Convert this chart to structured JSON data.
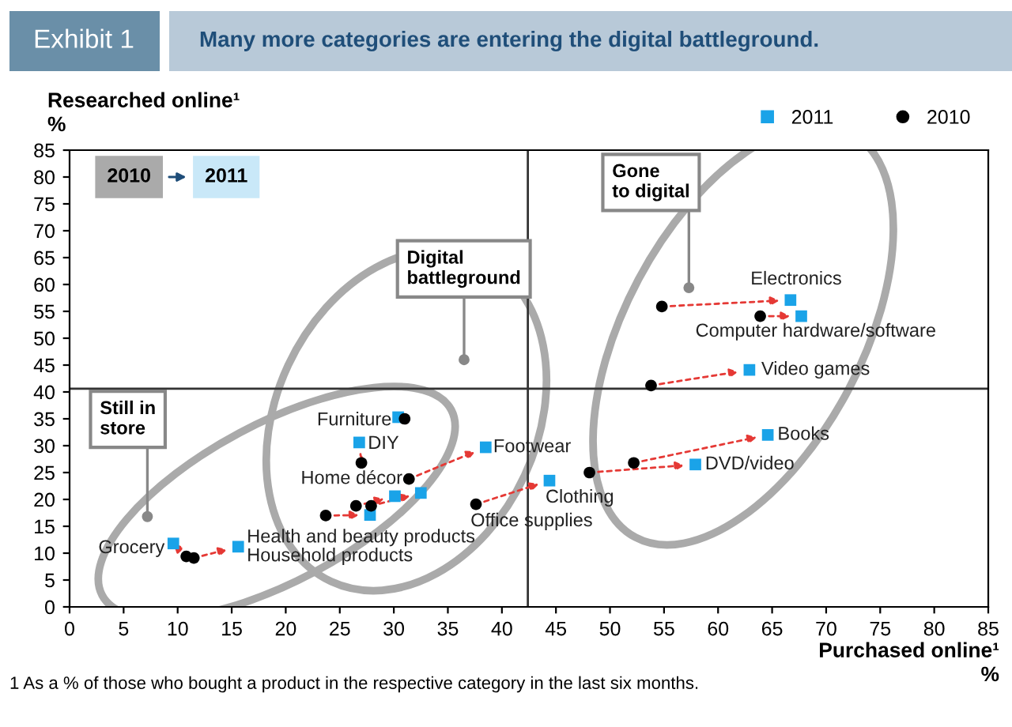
{
  "chart_data": {
    "type": "scatter",
    "title": "Exhibit 1",
    "subtitle": "Many more categories are entering the digital battleground.",
    "xlabel": "Purchased online¹\n%",
    "ylabel": "Researched online¹\n%",
    "xlim": [
      0,
      85
    ],
    "ylim": [
      0,
      85
    ],
    "xticks": [
      0,
      5,
      10,
      15,
      20,
      25,
      30,
      35,
      40,
      45,
      50,
      55,
      60,
      65,
      70,
      75,
      80,
      85
    ],
    "yticks": [
      0,
      5,
      10,
      15,
      20,
      25,
      30,
      35,
      40,
      45,
      50,
      55,
      60,
      65,
      70,
      75,
      80,
      85
    ],
    "grid": false,
    "legend": "top right",
    "series": [
      {
        "name": "2011",
        "color": "#1aa3e8",
        "marker": "square",
        "x": [
          9.6,
          15.6,
          27.8,
          30.1,
          32.5,
          38.5,
          26.8,
          30.4,
          44.4,
          57.9,
          64.6,
          62.9,
          66.7,
          67.7
        ],
        "values": [
          11.8,
          11.2,
          17.1,
          20.6,
          21.2,
          29.7,
          30.6,
          35.3,
          23.5,
          26.5,
          32,
          44.1,
          57.1,
          54.1
        ]
      },
      {
        "name": "2010",
        "color": "#000000",
        "marker": "circle",
        "x": [
          10.8,
          11.5,
          23.7,
          26.5,
          27.9,
          31.4,
          27.0,
          31.0,
          37.6,
          48.1,
          52.2,
          53.8,
          54.8,
          63.9
        ],
        "values": [
          9.4,
          9.1,
          17,
          18.8,
          18.8,
          23.8,
          26.8,
          35,
          19.1,
          25,
          26.8,
          41.2,
          55.9,
          54.1
        ]
      }
    ],
    "ref_lines": [
      {
        "axis": "x",
        "value": 42.4,
        "color": "#333333"
      },
      {
        "axis": "y",
        "value": 40.6,
        "color": "#333333"
      }
    ],
    "annotations": [
      "Grocery",
      "Household products",
      "Health and beauty products",
      "Furniture",
      "DIY",
      "Home décor",
      "Footwear",
      "Clothing",
      "Office supplies",
      "Electronics",
      "Computer hardware/software",
      "Video games",
      "Books",
      "DVD/video",
      "Still in\nstore",
      "Digital\nbattleground",
      "Gone\nto digital",
      "2010",
      "2011",
      "1 As a % of those who bought a product in the respective category in the last six months."
    ]
  }
}
